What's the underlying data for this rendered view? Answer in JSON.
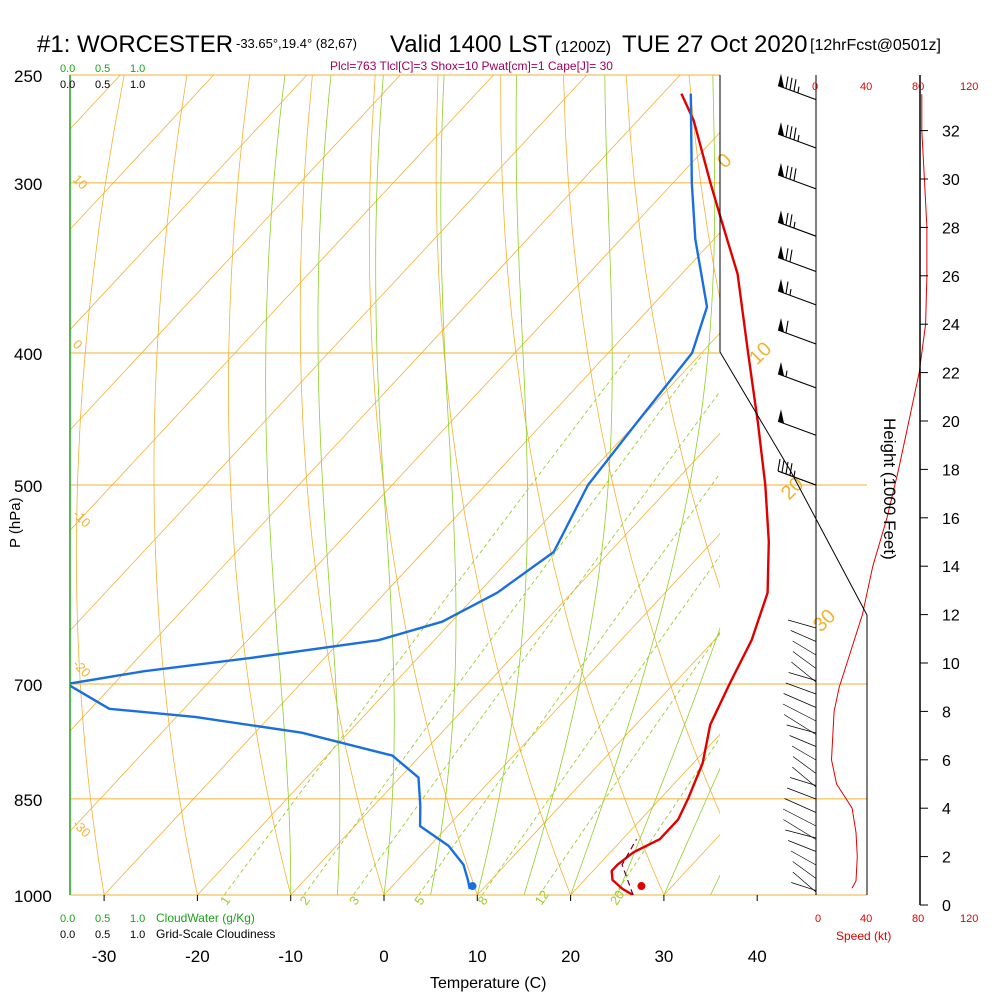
{
  "header": {
    "station": "#1: WORCESTER",
    "coords": "-33.65°,19.4° (82,67)",
    "valid": "Valid 1400 LST",
    "zulu": "(1200Z)",
    "date": "TUE 27 Oct 2020",
    "forecast": "[12hrFcst@0501z]",
    "indices": "Plcl=763 Tlcl[C]=3 Shox=10 Pwat[cm]=1 Cape[J]= 30"
  },
  "labels": {
    "cloud_scale_green": [
      "0.0",
      "0.5",
      "1.0"
    ],
    "cloud_scale_black": [
      "0.0",
      "0.5",
      "1.0"
    ],
    "cloudwater": "CloudWater (g/Kg)",
    "cloudiness": "Grid-Scale Cloudiness",
    "speed_label": "Speed (kt)",
    "speed_ticks": [
      "0",
      "40",
      "80",
      "120"
    ],
    "height_label": "Height (1000 Feet)",
    "isotherm_labels": [
      "0",
      "10",
      "20",
      "30"
    ],
    "mixing_ratio_labels": [
      "1",
      "2",
      "3",
      "5",
      "8",
      "12",
      "20"
    ],
    "dry_adiabat_labels": [
      "10",
      "0",
      "-10",
      "-20",
      "-30"
    ]
  },
  "colors": {
    "temperature": "#e00000",
    "dewpoint": "#1a6fe0",
    "isobar": "#f2b233",
    "isotherm": "#f2b233",
    "dry_adiabat": "#f2b233",
    "moist_adiabat": "#8fcf2a",
    "mixing_ratio": "#9acd32",
    "cloud_scale": "#1aa31a",
    "title_magenta": "#a0005a",
    "speed": "#e00000"
  },
  "chart_data": {
    "type": "line",
    "title": "Skew-T log-P sounding",
    "xlabel": "Temperature (C)",
    "ylabel": "P (hPa)",
    "x_ticks": [
      -30,
      -20,
      -10,
      0,
      10,
      20,
      30,
      40
    ],
    "y_ticks": [
      250,
      300,
      400,
      500,
      700,
      850,
      1000
    ],
    "height_ticks_kft": [
      0,
      2,
      4,
      6,
      8,
      10,
      12,
      14,
      16,
      18,
      20,
      22,
      24,
      26,
      28,
      30,
      32
    ],
    "series": [
      {
        "name": "Temperature",
        "points": [
          [
            1000,
            26.7
          ],
          [
            990,
            25
          ],
          [
            975,
            23
          ],
          [
            960,
            22
          ],
          [
            950,
            22
          ],
          [
            930,
            22.5
          ],
          [
            910,
            24
          ],
          [
            880,
            24
          ],
          [
            850,
            23
          ],
          [
            800,
            21
          ],
          [
            750,
            18
          ],
          [
            700,
            16
          ],
          [
            650,
            14
          ],
          [
            600,
            11
          ],
          [
            550,
            6
          ],
          [
            500,
            0
          ],
          [
            450,
            -7
          ],
          [
            400,
            -15
          ],
          [
            350,
            -24
          ],
          [
            320,
            -31
          ],
          [
            300,
            -36
          ],
          [
            270,
            -44
          ],
          [
            258,
            -48
          ]
        ]
      },
      {
        "name": "Dewpoint",
        "points": [
          [
            990,
            8.6
          ],
          [
            975,
            7.5
          ],
          [
            950,
            5.5
          ],
          [
            920,
            2
          ],
          [
            890,
            -3
          ],
          [
            860,
            -5
          ],
          [
            820,
            -8
          ],
          [
            790,
            -13
          ],
          [
            760,
            -25
          ],
          [
            740,
            -38
          ],
          [
            730,
            -48
          ],
          [
            700,
            -55
          ],
          [
            685,
            -48
          ],
          [
            670,
            -38
          ],
          [
            650,
            -26
          ],
          [
            630,
            -21
          ],
          [
            600,
            -18
          ],
          [
            560,
            -16
          ],
          [
            500,
            -19
          ],
          [
            450,
            -20
          ],
          [
            400,
            -21
          ],
          [
            370,
            -24
          ],
          [
            330,
            -32
          ],
          [
            300,
            -38
          ],
          [
            258,
            -47
          ]
        ]
      },
      {
        "name": "Parcel",
        "points": [
          [
            1000,
            26.7
          ],
          [
            950,
            22.5
          ],
          [
            910,
            21.5
          ]
        ]
      }
    ],
    "surface_temperature": 26.7,
    "surface_dewpoint": 8.6,
    "wind_speed_profile_kt": [
      [
        0.7,
        28
      ],
      [
        1,
        31
      ],
      [
        2,
        32
      ],
      [
        3,
        31
      ],
      [
        4,
        28
      ],
      [
        4.5,
        22
      ],
      [
        5,
        16
      ],
      [
        6,
        12
      ],
      [
        8,
        14
      ],
      [
        9,
        18
      ],
      [
        10,
        24
      ],
      [
        12,
        36
      ],
      [
        14,
        44
      ],
      [
        16,
        55
      ],
      [
        18,
        64
      ],
      [
        20,
        72
      ],
      [
        22,
        80
      ],
      [
        24,
        85
      ],
      [
        26,
        86
      ],
      [
        28,
        86
      ],
      [
        30,
        84
      ],
      [
        32,
        82
      ],
      [
        33.5,
        82
      ]
    ],
    "wind_barbs": [
      {
        "p": 258,
        "dir": 290,
        "kt": 85
      },
      {
        "p": 280,
        "dir": 290,
        "kt": 85
      },
      {
        "p": 300,
        "dir": 290,
        "kt": 80
      },
      {
        "p": 325,
        "dir": 290,
        "kt": 75
      },
      {
        "p": 345,
        "dir": 285,
        "kt": 70
      },
      {
        "p": 365,
        "dir": 285,
        "kt": 65
      },
      {
        "p": 390,
        "dir": 285,
        "kt": 60
      },
      {
        "p": 420,
        "dir": 285,
        "kt": 55
      },
      {
        "p": 455,
        "dir": 285,
        "kt": 50
      },
      {
        "p": 495,
        "dir": 285,
        "kt": 45
      }
    ]
  }
}
